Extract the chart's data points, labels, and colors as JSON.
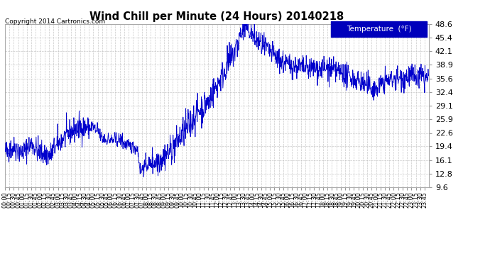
{
  "title": "Wind Chill per Minute (24 Hours) 20140218",
  "copyright_text": "Copyright 2014 Cartronics.com",
  "legend_label": "Temperature  (°F)",
  "line_color": "#0000cc",
  "background_color": "#ffffff",
  "grid_color": "#bbbbbb",
  "legend_bg": "#0000bb",
  "legend_text_color": "#ffffff",
  "ylim": [
    9.6,
    48.6
  ],
  "yticks": [
    9.6,
    12.8,
    16.1,
    19.4,
    22.6,
    25.9,
    29.1,
    32.4,
    35.6,
    38.9,
    42.1,
    45.4,
    48.6
  ],
  "xtick_interval_minutes": 15,
  "total_minutes": 1440,
  "cp_min": [
    0,
    30,
    60,
    90,
    120,
    150,
    180,
    210,
    240,
    270,
    300,
    315,
    330,
    360,
    390,
    420,
    450,
    460,
    465,
    480,
    495,
    510,
    540,
    570,
    600,
    630,
    660,
    690,
    720,
    750,
    780,
    800,
    815,
    825,
    840,
    860,
    880,
    900,
    930,
    960,
    990,
    1020,
    1050,
    1080,
    1110,
    1140,
    1170,
    1200,
    1230,
    1260,
    1290,
    1320,
    1350,
    1380,
    1410,
    1439
  ],
  "cp_val": [
    18,
    19,
    18,
    20,
    18,
    17,
    20,
    22,
    23.5,
    24,
    24,
    23,
    21,
    21,
    21,
    19.5,
    19,
    13.5,
    14,
    15,
    15.5,
    16,
    17,
    19,
    22,
    25,
    28,
    30,
    34,
    38,
    42,
    46,
    48.2,
    47.5,
    46,
    44.5,
    43,
    42,
    40,
    39,
    38.5,
    38,
    38,
    38,
    37.5,
    37,
    36,
    35,
    34,
    33,
    35,
    35.5,
    36,
    36,
    36,
    35.5
  ]
}
